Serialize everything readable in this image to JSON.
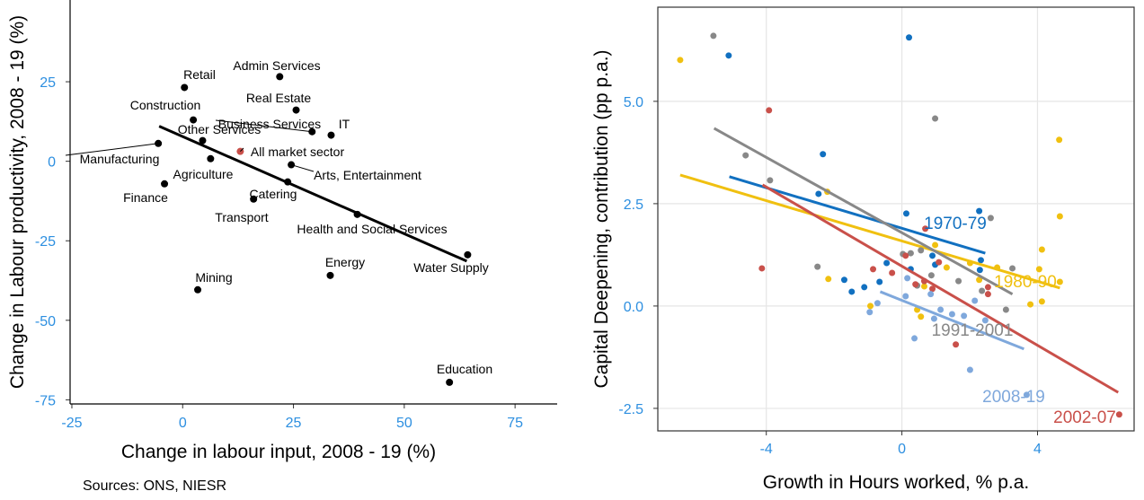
{
  "chart_data": [
    {
      "type": "scatter",
      "x_label": "Change in labour input, 2008 - 19 (%)",
      "y_label": "Change in Labour productivity, 2008 - 19 (%)",
      "note": "Sources: ONS, NIESR",
      "labels": [
        "Retail",
        "Admin Services",
        "Real Estate",
        "Construction",
        "Business Services",
        "IT",
        "Other Services",
        "Manufacturing",
        "All market sector",
        "Agriculture",
        "Arts, Entertainment",
        "Finance",
        "Catering",
        "Transport",
        "Health and Social Services",
        "Water Supply",
        "Energy",
        "Mining",
        "Education"
      ],
      "x": [
        0.4,
        21.9,
        25.6,
        2.4,
        29.2,
        33.5,
        4.5,
        -5.5,
        13,
        6.3,
        24.5,
        -4.1,
        23.7,
        16,
        39.4,
        64.3,
        33.3,
        3.4,
        60.2
      ],
      "values": [
        23.2,
        26.6,
        16.1,
        13,
        9.3,
        8.2,
        6.5,
        5.6,
        3.1,
        0.8,
        -1.1,
        -7.1,
        -6.5,
        -11.9,
        -16.7,
        -29.4,
        -35.9,
        -40.4,
        -69.5
      ],
      "point_colors": [
        "#000000",
        "#000000",
        "#000000",
        "#000000",
        "#000000",
        "#000000",
        "#000000",
        "#000000",
        "#c9504a",
        "#000000",
        "#000000",
        "#000000",
        "#000000",
        "#000000",
        "#000000",
        "#000000",
        "#000000",
        "#000000",
        "#000000"
      ],
      "trend": {
        "x": [
          -5.3,
          64.1
        ],
        "y": [
          11,
          -31.4
        ],
        "color": "#000000"
      },
      "xlim": [
        -25.4,
        84.5
      ],
      "ylim": [
        -76.3,
        50.7
      ],
      "xticks": [
        -25,
        0,
        25,
        50,
        75
      ],
      "yticks": [
        25,
        0,
        -25,
        -50,
        -75
      ],
      "tick_color": "#2d8fe0",
      "grid": false
    },
    {
      "type": "scatter",
      "x_label": "Growth in Hours worked, % p.a.",
      "y_label": "Capital Deepening, contribution (pp p.a.)",
      "xlim": [
        -7.2,
        6.85
      ],
      "ylim": [
        -3.05,
        7.3
      ],
      "xticks": [
        -4,
        0,
        4
      ],
      "yticks": [
        {
          "value": 5,
          "label": "5.0"
        },
        {
          "value": 2.5,
          "label": "2.5"
        },
        {
          "value": 0,
          "label": "0.0"
        },
        {
          "value": -2.5,
          "label": "-2.5"
        }
      ],
      "tick_color": "#2d8fe0",
      "grid": true,
      "series": [
        {
          "name": "1970-79",
          "color": "#1170c0",
          "x": [
            -5.11,
            0.21,
            -2.33,
            -2.46,
            0.13,
            2.28,
            0.9,
            0.26,
            2.33,
            -0.45,
            -1.7,
            -1.48,
            -1.11,
            -0.66,
            0.98,
            2.3
          ],
          "values": [
            6.12,
            6.56,
            3.71,
            2.74,
            2.26,
            2.32,
            1.23,
            0.9,
            1.12,
            1.05,
            0.64,
            0.35,
            0.46,
            0.59,
            1.01,
            0.88
          ],
          "fit": {
            "x": [
              -5.09,
              2.46
            ],
            "y": [
              3.16,
              1.29
            ]
          }
        },
        {
          "name": "1980-90",
          "color": "#f0c010",
          "x": [
            -6.54,
            -2.2,
            4.64,
            4.66,
            4.13,
            4.05,
            4.66,
            4.13,
            3.79,
            -2.17,
            -0.93,
            0.56,
            0.98,
            1.32,
            2.01,
            0.66,
            0.45,
            2.28,
            2.81
          ],
          "values": [
            6.01,
            2.79,
            4.06,
            2.19,
            1.38,
            0.9,
            0.59,
            0.11,
            0.04,
            0.66,
            0,
            -0.26,
            1.49,
            0.94,
            1.05,
            0.48,
            -0.09,
            0.64,
            0.94
          ],
          "fit": {
            "x": [
              -6.54,
              4.66
            ],
            "y": [
              3.2,
              0.44
            ]
          }
        },
        {
          "name": "1991-2001",
          "color": "#888888",
          "x": [
            -5.56,
            -4.61,
            -3.89,
            0.98,
            -2.49,
            0.03,
            0.26,
            0.56,
            2.62,
            3.26,
            2.36,
            3.07,
            0.87,
            1.67,
            0.45
          ],
          "values": [
            6.6,
            3.68,
            3.07,
            4.58,
            0.96,
            1.27,
            1.29,
            1.36,
            2.15,
            0.92,
            0.37,
            -0.09,
            0.75,
            0.61,
            0.5
          ],
          "fit": {
            "x": [
              -5.54,
              3.26
            ],
            "y": [
              4.34,
              0.29
            ]
          }
        },
        {
          "name": "2002-07",
          "color": "#c9504a",
          "x": [
            -3.92,
            -4.13,
            0.69,
            0.11,
            1.09,
            -0.85,
            -0.29,
            0.9,
            0.4,
            2.54,
            2.54,
            1.59,
            6.41,
            0.66
          ],
          "values": [
            4.78,
            0.92,
            1.89,
            1.23,
            1.07,
            0.9,
            0.81,
            0.42,
            0.53,
            0.46,
            0.29,
            -0.94,
            -2.65,
            0.61
          ],
          "fit": {
            "x": [
              -4.11,
              6.38
            ],
            "y": [
              2.96,
              -2.11
            ]
          }
        },
        {
          "name": "2008-19",
          "color": "#7fa8dc",
          "x": [
            0.16,
            0.85,
            0.11,
            -0.72,
            -0.95,
            0.37,
            2.01,
            3.68,
            1.48,
            1.83,
            0.95,
            2.15,
            2.46,
            1.14
          ],
          "values": [
            0.68,
            0.29,
            0.24,
            0.07,
            -0.15,
            -0.79,
            -1.56,
            -2.17,
            -0.2,
            -0.24,
            -0.31,
            0.13,
            -0.35,
            -0.09
          ],
          "fit": {
            "x": [
              -0.64,
              3.6
            ],
            "y": [
              0.35,
              -1.05
            ]
          }
        }
      ]
    }
  ]
}
